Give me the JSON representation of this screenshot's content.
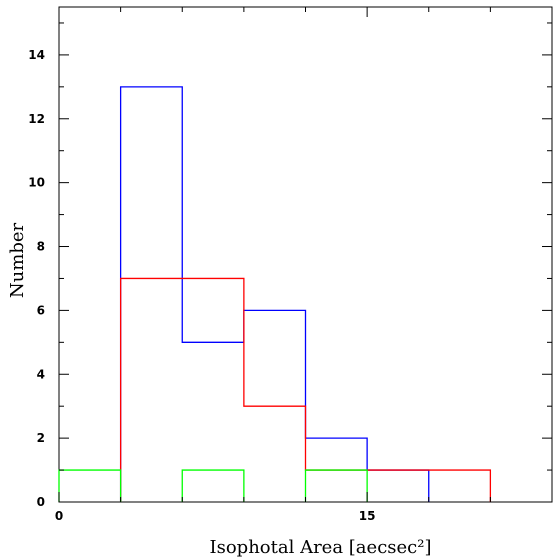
{
  "chart_data": {
    "type": "histogram",
    "xlabel": "Isophotal Area [aecsec²]",
    "ylabel": "Number",
    "xlim": [
      0,
      24
    ],
    "ylim": [
      0,
      15.5
    ],
    "x_ticks": [
      0,
      15
    ],
    "y_ticks": [
      0,
      2,
      4,
      6,
      8,
      10,
      12,
      14
    ],
    "x_minor_step": 3,
    "y_minor_step": 1,
    "bin_edges": [
      0,
      3,
      6,
      9,
      12,
      15,
      18,
      21
    ],
    "series": [
      {
        "color": "#0000ff",
        "values": [
          0,
          13,
          5,
          6,
          2,
          1,
          0
        ]
      },
      {
        "color": "#ff0000",
        "values": [
          0,
          7,
          7,
          3,
          1,
          1,
          1
        ]
      },
      {
        "color": "#00ff00",
        "values": [
          1,
          0,
          1,
          0,
          1,
          0,
          0
        ]
      }
    ]
  }
}
